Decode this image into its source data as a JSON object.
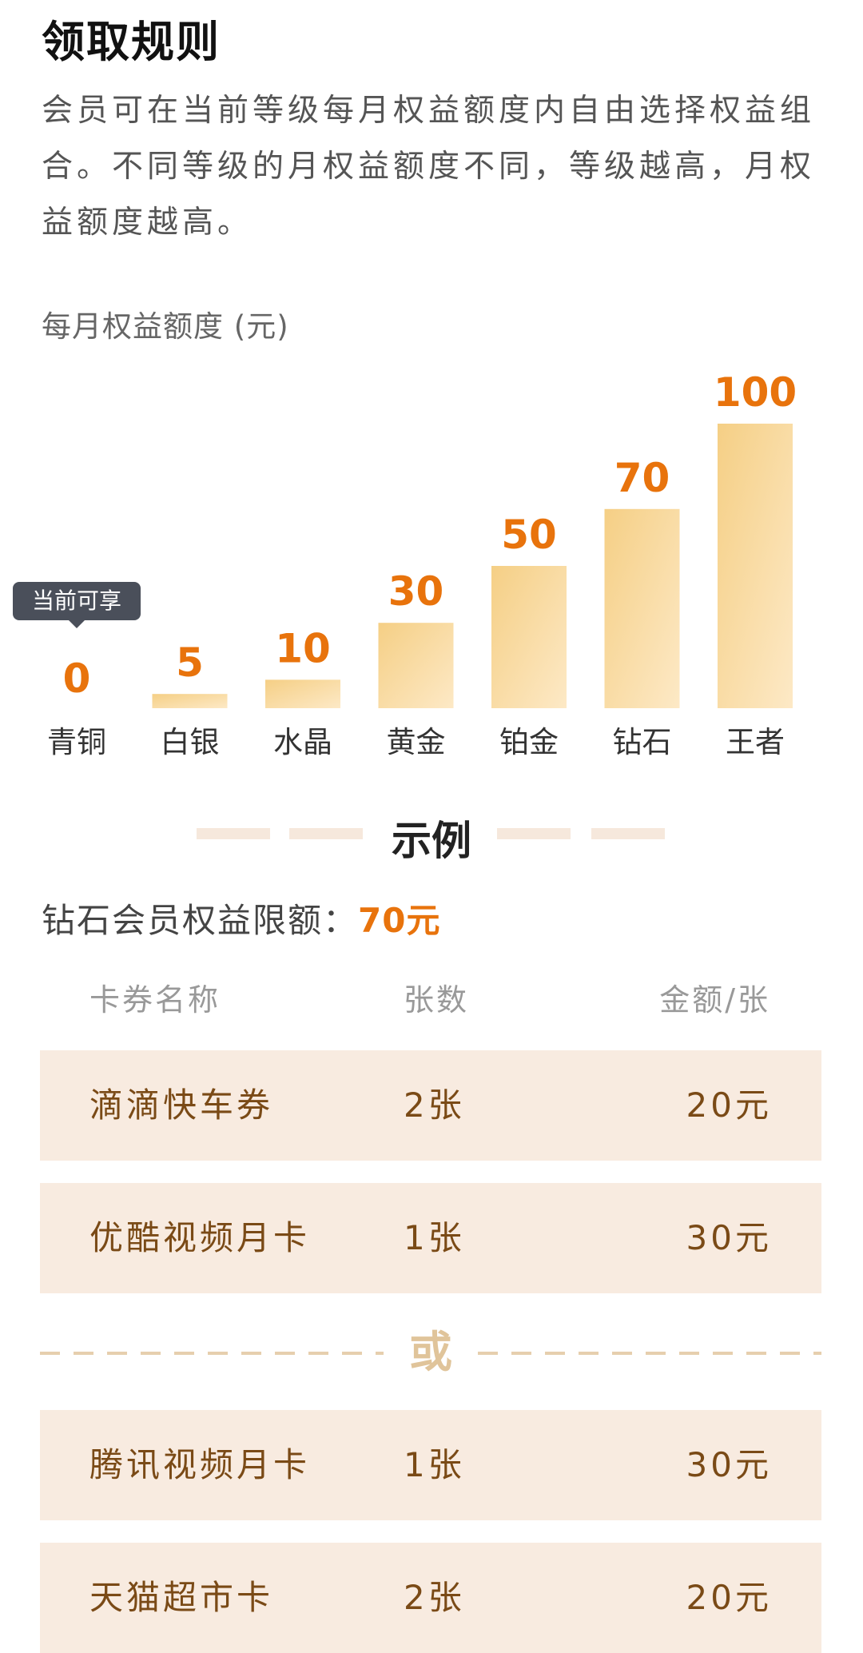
{
  "rules": {
    "title": "领取规则",
    "description": "会员可在当前等级每月权益额度内自由选择权益组合。不同等级的月权益额度不同，等级越高，月权益额度越高。"
  },
  "chart_data": {
    "type": "bar",
    "title": "每月权益额度 (元)",
    "categories": [
      "青铜",
      "白银",
      "水晶",
      "黄金",
      "铂金",
      "钻石",
      "王者"
    ],
    "values": [
      0,
      5,
      10,
      30,
      50,
      70,
      100
    ],
    "ylim": [
      0,
      100
    ],
    "bar_color": "#f5cf85",
    "value_color": "#e8730c",
    "tooltip": {
      "category": "青铜",
      "text": "当前可享"
    },
    "grid": false
  },
  "example": {
    "title": "示例",
    "limit_label": "钻石会员权益限额：",
    "limit_value": "70元",
    "columns": [
      "卡券名称",
      "张数",
      "金额/张"
    ],
    "rows_a": [
      {
        "name": "滴滴快车券",
        "count": "2张",
        "price": "20元"
      },
      {
        "name": "优酷视频月卡",
        "count": "1张",
        "price": "30元"
      }
    ],
    "or_label": "或",
    "rows_b": [
      {
        "name": "腾讯视频月卡",
        "count": "1张",
        "price": "30元"
      },
      {
        "name": "天猫超市卡",
        "count": "2张",
        "price": "20元"
      }
    ]
  },
  "colors": {
    "accent": "#e8730c",
    "row_bg": "#f8ebe0",
    "row_text": "#7a4a16"
  }
}
